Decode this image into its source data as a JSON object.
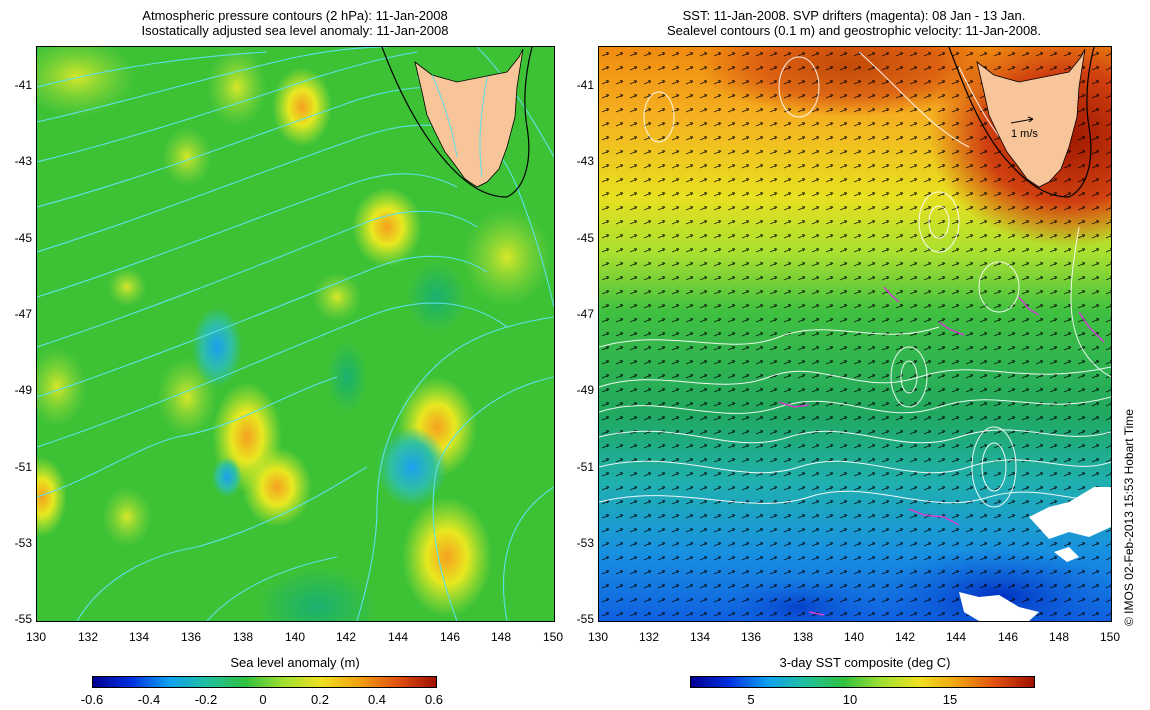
{
  "left_panel": {
    "title_line1": "Atmospheric pressure contours (2 hPa): 11-Jan-2008",
    "title_line2": "Isostatically adjusted sea level anomaly: 11-Jan-2008",
    "colorbar_label": "Sea level anomaly (m)",
    "colorbar_ticks": [
      "-0.6",
      "-0.4",
      "-0.2",
      "0",
      "0.2",
      "0.4",
      "0.6"
    ],
    "colors": {
      "ocean": "#2fbf3a",
      "land": "#f8c49a",
      "contour": "#5ee0e6"
    }
  },
  "right_panel": {
    "title_line1": "SST: 11-Jan-2008. SVP drifters (magenta): 08 Jan - 13 Jan.",
    "title_line2": "Sealevel contours (0.1 m) and geostrophic velocity: 11-Jan-2008.",
    "colorbar_label": "3-day SST composite (deg C)",
    "colorbar_ticks": [
      "5",
      "10",
      "15"
    ],
    "scale_arrow_label": "1 m/s",
    "colors": {
      "land": "#f8c49a",
      "contour": "#ffffff",
      "drifter": "#d040d0"
    }
  },
  "axes": {
    "y_ticks": [
      "-41",
      "-43",
      "-45",
      "-47",
      "-49",
      "-51",
      "-53",
      "-55"
    ],
    "x_ticks": [
      "130",
      "132",
      "134",
      "136",
      "138",
      "140",
      "142",
      "144",
      "146",
      "148",
      "150"
    ]
  },
  "credit": "© IMOS 02-Feb-2013 15:53 Hobart Time"
}
